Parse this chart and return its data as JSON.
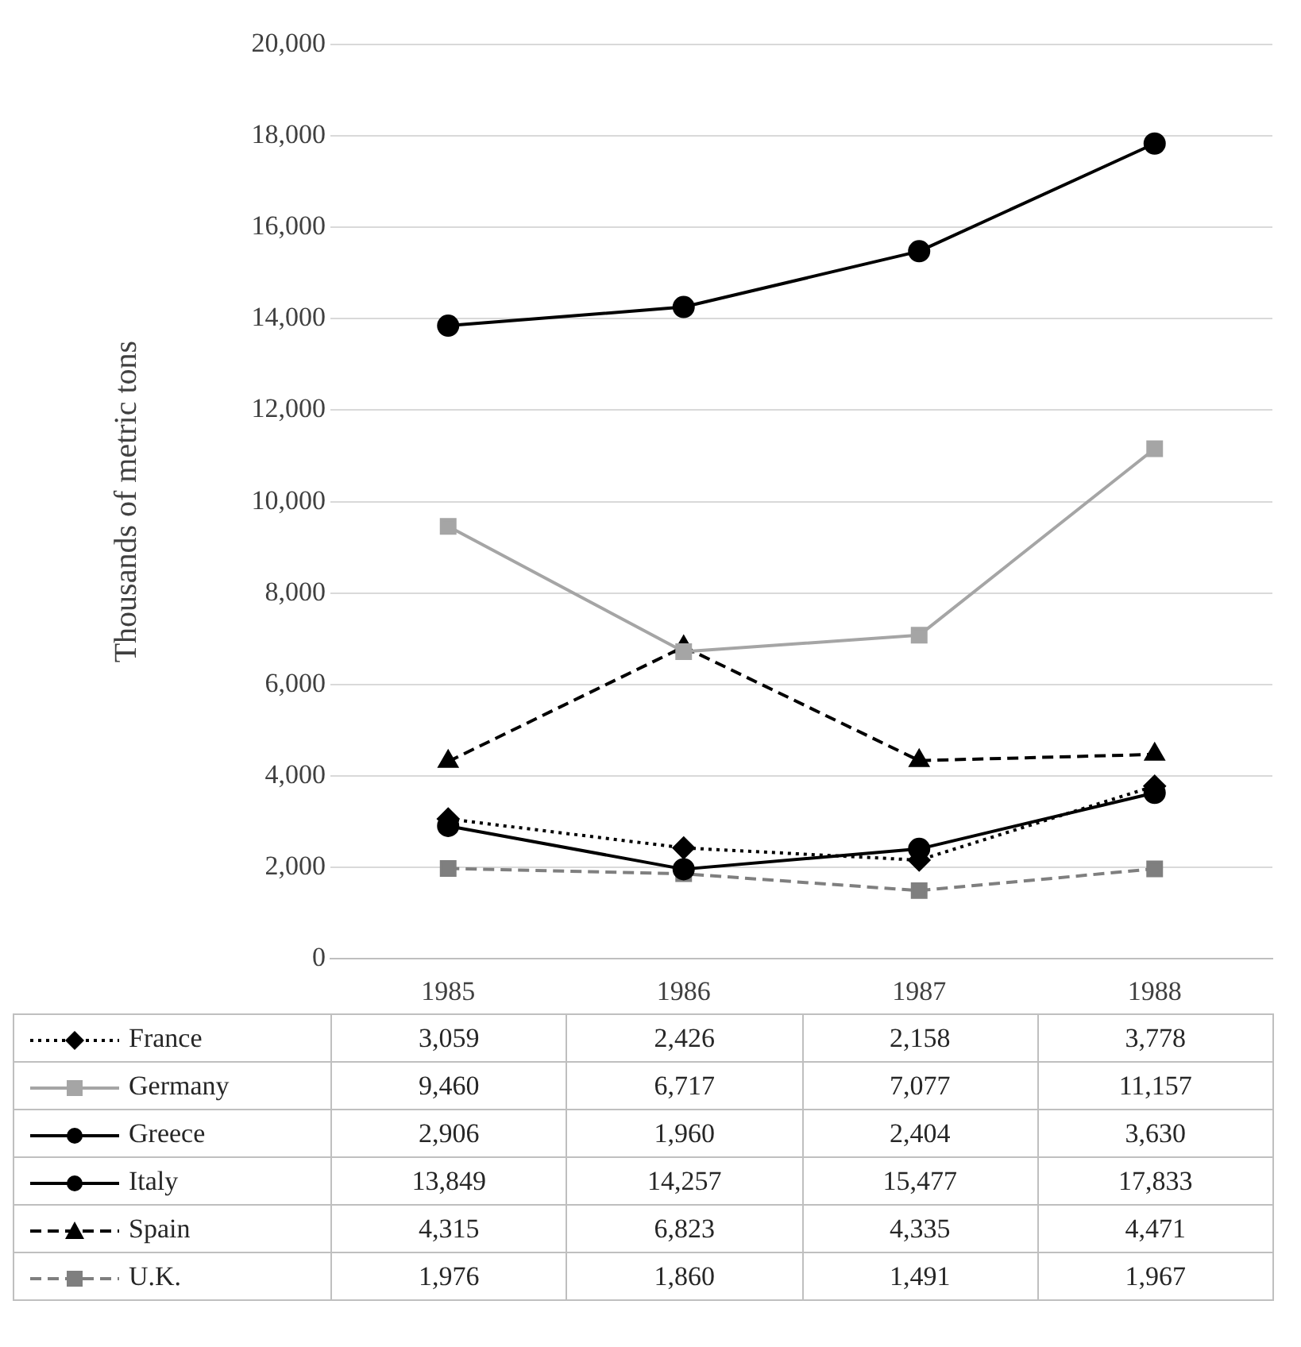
{
  "chart_data": {
    "type": "line",
    "ylabel": "Thousands of metric tons",
    "categories": [
      "1985",
      "1986",
      "1987",
      "1988"
    ],
    "series": [
      {
        "name": "France",
        "color": "#000000",
        "marker": "diamond",
        "line_style": "dotted",
        "values": [
          3059,
          2426,
          2158,
          3778
        ],
        "value_labels": [
          "3,059",
          "2,426",
          "2,158",
          "3,778"
        ]
      },
      {
        "name": "Germany",
        "color": "#a5a5a5",
        "marker": "square",
        "line_style": "solid",
        "values": [
          9460,
          6717,
          7077,
          11157
        ],
        "value_labels": [
          "9,460",
          "6,717",
          "7,077",
          "11,157"
        ]
      },
      {
        "name": "Greece",
        "color": "#000000",
        "marker": "circle",
        "line_style": "solid",
        "values": [
          2906,
          1960,
          2404,
          3630
        ],
        "value_labels": [
          "2,906",
          "1,960",
          "2,404",
          "3,630"
        ]
      },
      {
        "name": "Italy",
        "color": "#000000",
        "marker": "circle",
        "line_style": "solid",
        "values": [
          13849,
          14257,
          15477,
          17833
        ],
        "value_labels": [
          "13,849",
          "14,257",
          "15,477",
          "17,833"
        ]
      },
      {
        "name": "Spain",
        "color": "#000000",
        "marker": "triangle",
        "line_style": "dashed",
        "values": [
          4315,
          6823,
          4335,
          4471
        ],
        "value_labels": [
          "4,315",
          "6,823",
          "4,335",
          "4,471"
        ]
      },
      {
        "name": "U.K.",
        "color": "#7f7f7f",
        "marker": "square",
        "line_style": "dashed",
        "values": [
          1976,
          1860,
          1491,
          1967
        ],
        "value_labels": [
          "1,976",
          "1,860",
          "1,491",
          "1,967"
        ]
      }
    ],
    "ylim": [
      0,
      20000
    ],
    "yticks": [
      0,
      {
        "value": 2000,
        "label": "2,000"
      },
      {
        "value": 4000,
        "label": "4,000"
      },
      {
        "value": 6000,
        "label": "6,000"
      },
      {
        "value": 8000,
        "label": "8,000"
      },
      {
        "value": 10000,
        "label": "10,000"
      },
      {
        "value": 12000,
        "label": "12,000"
      },
      {
        "value": 14000,
        "label": "14,000"
      },
      {
        "value": 16000,
        "label": "16,000"
      },
      {
        "value": 18000,
        "label": "18,000"
      },
      {
        "value": 20000,
        "label": "20,000"
      }
    ],
    "grid": "y",
    "legend": "bottom"
  }
}
